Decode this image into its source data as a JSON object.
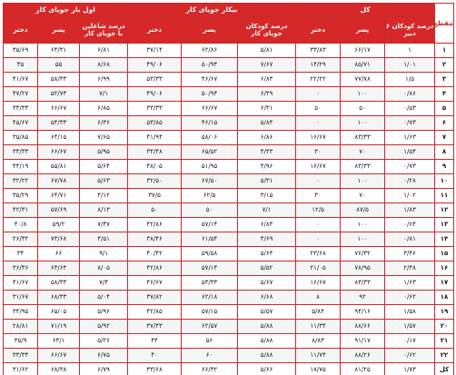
{
  "header": {
    "row_label": "مقطع",
    "groups": [
      "کل",
      "بیکار جویای کار",
      "اول بار جویای کار"
    ],
    "sub": [
      "درصد کودکان ۶ دبیر",
      "پسر",
      "دختر",
      "درصد کودکان جویای کار",
      "پسر",
      "دختر",
      "درصد شاغلین یا جویای کار",
      "پسر",
      "دختر"
    ]
  },
  "rows": [
    {
      "label": "۱",
      "cells": [
        "۱",
        "۶۶/۱۷",
        "۳۳/۸۳",
        "۵/۸۱",
        "۶۲/۸۶",
        "۳۷/۱۴",
        "۶/۸۱",
        "۶۴/۳۱",
        "۳۵/۶۹"
      ]
    },
    {
      "label": "۲",
      "cells": [
        "۱/۰۱",
        "۸۵/۷۱",
        "۱۴/۲۹",
        "۷/۶۷",
        "۵۰/۹۴",
        "۴۹/۰۶",
        "۸/۶۸",
        "۵۵",
        "۴۵"
      ]
    },
    {
      "label": "۳",
      "cells": [
        "۱/۵",
        "۷۷/۷۸",
        "۲۲/۲۲",
        "۶/۸۳",
        "۴۶/۶۷",
        "۵۳/۳۳",
        "۶/۹۹",
        "۵۸/۳۳",
        "۴۱/۶۷"
      ]
    },
    {
      "label": "۴",
      "cells": [
        "۰/۸۶",
        "۱۰۰",
        "۰",
        "۶/۴۹",
        "۵۰/۹۴",
        "۴۹/۰۶",
        "۷/۱",
        "۵۲/۷۳",
        "۴۷/۲۷"
      ]
    },
    {
      "label": "۵",
      "cells": [
        "۰/۵۳",
        "۵۰",
        "۵۰",
        "۶/۳۱",
        "۶۶/۶۷",
        "۳۳/۳۳",
        "۶/۸۵",
        "۶۶/۶۷",
        "۳۳/۳۳"
      ]
    },
    {
      "label": "۶",
      "cells": [
        "۰/۷۳",
        "۱۰۰",
        "۰",
        "۵/۸۴",
        "۴۶/۱۵",
        "۵۳/۸۵",
        "۶/۳۶",
        "۵۴/۳۳",
        "۴۵/۶۷"
      ]
    },
    {
      "label": "۷",
      "cells": [
        "۱/۶۳",
        "۸۳/۳۳",
        "۱۶/۶۷",
        "۶/۸۶",
        "۵۸/۰۶",
        "۴۱/۹۴",
        "۷/۶۵",
        "۶۴/۱۵",
        "۳۵/۸۵"
      ]
    },
    {
      "label": "۸",
      "cells": [
        "۱/۵۴",
        "۷۰",
        "۳۰",
        "۴/۴۳",
        "۶۵/۵۲",
        "۳۴/۴۸",
        "۵/۹۵",
        "۶۶/۶۷",
        "۳۳/۳۳"
      ]
    },
    {
      "label": "۹",
      "cells": [
        "۰/۷۳",
        "۸۳/۳۳",
        "۱۶/۶۷",
        "۴/۹۶",
        "۵۱/۹۵",
        "۴۸/۰۵",
        "۵/۶۴",
        "۵۵/۸۱",
        "۴۴/۱۹"
      ]
    },
    {
      "label": "۱۰",
      "cells": [
        "۰/۲۸",
        "۱۰۰",
        "۰",
        "۵/۳۱",
        "۶۷/۵۰",
        "۳۲/۵۰",
        "۵/۶۳",
        "۶۷/۷۸",
        "۳۲/۲۲"
      ]
    },
    {
      "label": "۱۱",
      "cells": [
        "۱/۰۲",
        "۷۰",
        "۳۰",
        "۳/۱۵",
        "۶۲/۵",
        "۳۷/۵",
        "۴/۱۲",
        "۶۴/۷۱",
        "۳۵/۲۹"
      ]
    },
    {
      "label": "۱۲",
      "cells": [
        "۱/۸۳",
        "۸۷/۵",
        "۱۲/۵",
        "۷/۱",
        "۵۰",
        "۵۰",
        "۸/۱۳",
        "۵۷/۶۹",
        "۴۲/۳۱"
      ]
    },
    {
      "label": "۱۳",
      "cells": [
        "۰/۶۴",
        "۱۰۰",
        "۰",
        "۶/۸۳",
        "۵۷/۱۴",
        "۴۲/۸۶",
        "۷/۴۷",
        "۵۹/۲",
        "۴۰/۸"
      ]
    },
    {
      "label": "۱۴",
      "cells": [
        "۰/۸۱",
        "۱۰۰",
        "۰",
        "۳/۶۹",
        "۶۱/۵۴",
        "۳۸/۴۶",
        "۴/۵۱",
        "۷۳/۶۸",
        "۲۶/۳۲"
      ]
    },
    {
      "label": "۱۵",
      "cells": [
        "۳/۴۶",
        "۷۶/۳۲",
        "۲۳/۶۸",
        "۵/۶۴",
        "۵۹/۵۸",
        "۴۰/۴۲",
        "۹/۱",
        "۶۶",
        "۳۴"
      ]
    },
    {
      "label": "۱۶",
      "cells": [
        "۲/۴۸",
        "۷۸/۹۵",
        "۲۱/۰۵",
        "۵/۵۲",
        "۵۷/۱۴",
        "۴۲/۸۶",
        "۸/۰۵",
        "۶۳/۶۴",
        "۳۶/۳۶"
      ]
    },
    {
      "label": "۱۷",
      "cells": [
        "۱/۶۳",
        "۸۳/۳۳",
        "۱۶/۶۷",
        "۵/۶۷",
        "۵۳/۳۳",
        "۴۶/۶۷",
        "۷/۳",
        "۵۸/۳۳",
        "۴۱/۶۷"
      ]
    },
    {
      "label": "۱۸",
      "cells": [
        "۰/۶۲",
        "۹۲",
        "۸",
        "۶/۶۸",
        "۶۲/۱۸",
        "۳۷/۸۲",
        "۵/۰۴",
        "۶۸/۳۳",
        "۳۱/۶۷"
      ]
    },
    {
      "label": "۱۹",
      "cells": [
        "۱/۵۸",
        "۹۴/۱۶",
        "۵/۸۴",
        "۵/۵۷",
        "۵۷/۱۵",
        "۴۲/۸۵",
        "۵/۹۶",
        "۶۵/۰۵",
        "۳۴/۹۵"
      ]
    },
    {
      "label": "۲۰",
      "cells": [
        "۱/۵۷",
        "۸۸/۶۶",
        "۱۱/۳۴",
        "۵/۸۸",
        "۶۲/۵۷",
        "۳۷/۴۳",
        "۵/۹۲",
        "۷۱/۱۹",
        "۲۸/۸۱"
      ]
    },
    {
      "label": "۲۱",
      "cells": [
        "۰/۱۷",
        "۹۱/۱۷",
        "۸/۸۳",
        "۵/۸۸",
        "۵۶",
        "۴۴",
        "۵/۲۶",
        "۶۴/۱",
        "۳۵/۹"
      ]
    },
    {
      "label": "۲۲",
      "cells": [
        "۰/۶۲",
        "۸۸/۲۶",
        "۱۱/۷۴",
        "۵/۸۸",
        "۶۰",
        "۴۰",
        "۶/۷۵",
        "۶۶/۶۷",
        "۳۳/۳۳"
      ]
    },
    {
      "label": "کل",
      "cells": [
        "۱/۷۳",
        "۸۱/۲۵",
        "۱۸/۷۵",
        "۵/۶۶",
        "۶۶/۳۲",
        "۳۳/۶۸",
        "۶/۷۹",
        "۶۸/۳۸",
        "۳۱/۶۲"
      ]
    }
  ]
}
